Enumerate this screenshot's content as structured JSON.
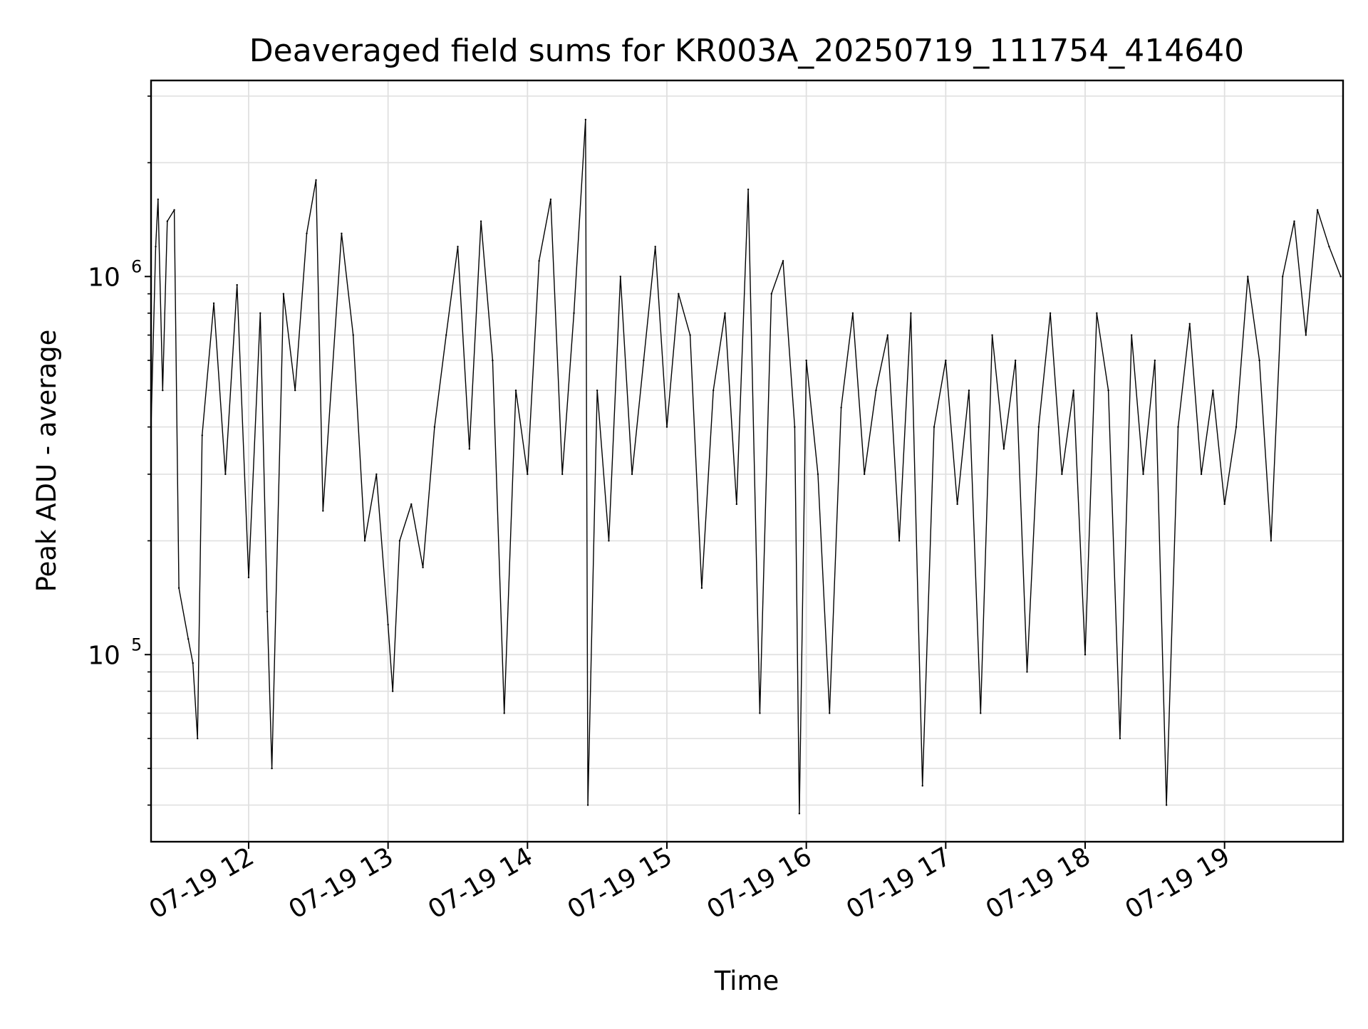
{
  "chart_data": {
    "type": "line",
    "title": "Deaveraged field sums for KR003A_20250719_111754_414640",
    "xlabel": "Time",
    "ylabel": "Peak ADU - average",
    "xscale": "time",
    "yscale": "log",
    "x_range": [
      "07-19 11:18",
      "07-19 19:51"
    ],
    "ylim": [
      32000,
      3300000
    ],
    "x_ticks": [
      {
        "value": "07-19 12:00",
        "label": "07-19 12"
      },
      {
        "value": "07-19 13:00",
        "label": "07-19 13"
      },
      {
        "value": "07-19 14:00",
        "label": "07-19 14"
      },
      {
        "value": "07-19 15:00",
        "label": "07-19 15"
      },
      {
        "value": "07-19 16:00",
        "label": "07-19 16"
      },
      {
        "value": "07-19 17:00",
        "label": "07-19 17"
      },
      {
        "value": "07-19 18:00",
        "label": "07-19 18"
      },
      {
        "value": "07-19 19:00",
        "label": "07-19 19"
      }
    ],
    "y_major_ticks": [
      {
        "value": 100000,
        "base": "10",
        "exp": "5"
      },
      {
        "value": 1000000,
        "base": "10",
        "exp": "6"
      }
    ],
    "y_minor_ticks": [
      40000,
      50000,
      60000,
      70000,
      80000,
      90000,
      200000,
      300000,
      400000,
      500000,
      600000,
      700000,
      800000,
      900000,
      2000000,
      3000000
    ],
    "grid": true,
    "line_color": "#000000",
    "grid_color": "#e0e0e0",
    "series": [
      {
        "points": [
          [
            "07-19 11:18",
            400000
          ],
          [
            "07-19 11:20",
            1200000
          ],
          [
            "07-19 11:21",
            1600000
          ],
          [
            "07-19 11:23",
            500000
          ],
          [
            "07-19 11:25",
            1400000
          ],
          [
            "07-19 11:28",
            1500000
          ],
          [
            "07-19 11:30",
            150000
          ],
          [
            "07-19 11:34",
            110000
          ],
          [
            "07-19 11:36",
            95000
          ],
          [
            "07-19 11:38",
            60000
          ],
          [
            "07-19 11:40",
            380000
          ],
          [
            "07-19 11:45",
            850000
          ],
          [
            "07-19 11:50",
            300000
          ],
          [
            "07-19 11:55",
            950000
          ],
          [
            "07-19 12:00",
            160000
          ],
          [
            "07-19 12:05",
            800000
          ],
          [
            "07-19 12:08",
            130000
          ],
          [
            "07-19 12:10",
            50000
          ],
          [
            "07-19 12:15",
            900000
          ],
          [
            "07-19 12:20",
            500000
          ],
          [
            "07-19 12:25",
            1300000
          ],
          [
            "07-19 12:29",
            1800000
          ],
          [
            "07-19 12:32",
            240000
          ],
          [
            "07-19 12:40",
            1300000
          ],
          [
            "07-19 12:45",
            700000
          ],
          [
            "07-19 12:50",
            200000
          ],
          [
            "07-19 12:55",
            300000
          ],
          [
            "07-19 13:00",
            120000
          ],
          [
            "07-19 13:02",
            80000
          ],
          [
            "07-19 13:05",
            200000
          ],
          [
            "07-19 13:10",
            250000
          ],
          [
            "07-19 13:15",
            170000
          ],
          [
            "07-19 13:20",
            400000
          ],
          [
            "07-19 13:25",
            700000
          ],
          [
            "07-19 13:30",
            1200000
          ],
          [
            "07-19 13:35",
            350000
          ],
          [
            "07-19 13:40",
            1400000
          ],
          [
            "07-19 13:45",
            600000
          ],
          [
            "07-19 13:50",
            70000
          ],
          [
            "07-19 13:55",
            500000
          ],
          [
            "07-19 14:00",
            300000
          ],
          [
            "07-19 14:05",
            1100000
          ],
          [
            "07-19 14:10",
            1600000
          ],
          [
            "07-19 14:15",
            300000
          ],
          [
            "07-19 14:20",
            800000
          ],
          [
            "07-19 14:25",
            2600000
          ],
          [
            "07-19 14:26",
            40000
          ],
          [
            "07-19 14:30",
            500000
          ],
          [
            "07-19 14:35",
            200000
          ],
          [
            "07-19 14:40",
            1000000
          ],
          [
            "07-19 14:45",
            300000
          ],
          [
            "07-19 14:50",
            600000
          ],
          [
            "07-19 14:55",
            1200000
          ],
          [
            "07-19 15:00",
            400000
          ],
          [
            "07-19 15:05",
            900000
          ],
          [
            "07-19 15:10",
            700000
          ],
          [
            "07-19 15:15",
            150000
          ],
          [
            "07-19 15:20",
            500000
          ],
          [
            "07-19 15:25",
            800000
          ],
          [
            "07-19 15:30",
            250000
          ],
          [
            "07-19 15:35",
            1700000
          ],
          [
            "07-19 15:40",
            70000
          ],
          [
            "07-19 15:45",
            900000
          ],
          [
            "07-19 15:50",
            1100000
          ],
          [
            "07-19 15:55",
            400000
          ],
          [
            "07-19 15:57",
            38000
          ],
          [
            "07-19 16:00",
            600000
          ],
          [
            "07-19 16:05",
            300000
          ],
          [
            "07-19 16:10",
            70000
          ],
          [
            "07-19 16:15",
            450000
          ],
          [
            "07-19 16:20",
            800000
          ],
          [
            "07-19 16:25",
            300000
          ],
          [
            "07-19 16:30",
            500000
          ],
          [
            "07-19 16:35",
            700000
          ],
          [
            "07-19 16:40",
            200000
          ],
          [
            "07-19 16:45",
            800000
          ],
          [
            "07-19 16:50",
            45000
          ],
          [
            "07-19 16:55",
            400000
          ],
          [
            "07-19 17:00",
            600000
          ],
          [
            "07-19 17:05",
            250000
          ],
          [
            "07-19 17:10",
            500000
          ],
          [
            "07-19 17:15",
            70000
          ],
          [
            "07-19 17:20",
            700000
          ],
          [
            "07-19 17:25",
            350000
          ],
          [
            "07-19 17:30",
            600000
          ],
          [
            "07-19 17:35",
            90000
          ],
          [
            "07-19 17:40",
            400000
          ],
          [
            "07-19 17:45",
            800000
          ],
          [
            "07-19 17:50",
            300000
          ],
          [
            "07-19 17:55",
            500000
          ],
          [
            "07-19 18:00",
            100000
          ],
          [
            "07-19 18:05",
            800000
          ],
          [
            "07-19 18:10",
            500000
          ],
          [
            "07-19 18:15",
            60000
          ],
          [
            "07-19 18:20",
            700000
          ],
          [
            "07-19 18:25",
            300000
          ],
          [
            "07-19 18:30",
            600000
          ],
          [
            "07-19 18:35",
            40000
          ],
          [
            "07-19 18:40",
            400000
          ],
          [
            "07-19 18:45",
            750000
          ],
          [
            "07-19 18:50",
            300000
          ],
          [
            "07-19 18:55",
            500000
          ],
          [
            "07-19 19:00",
            250000
          ],
          [
            "07-19 19:05",
            400000
          ],
          [
            "07-19 19:10",
            1000000
          ],
          [
            "07-19 19:15",
            600000
          ],
          [
            "07-19 19:20",
            200000
          ],
          [
            "07-19 19:25",
            1000000
          ],
          [
            "07-19 19:30",
            1400000
          ],
          [
            "07-19 19:35",
            700000
          ],
          [
            "07-19 19:40",
            1500000
          ],
          [
            "07-19 19:45",
            1200000
          ],
          [
            "07-19 19:50",
            1000000
          ]
        ]
      }
    ]
  }
}
